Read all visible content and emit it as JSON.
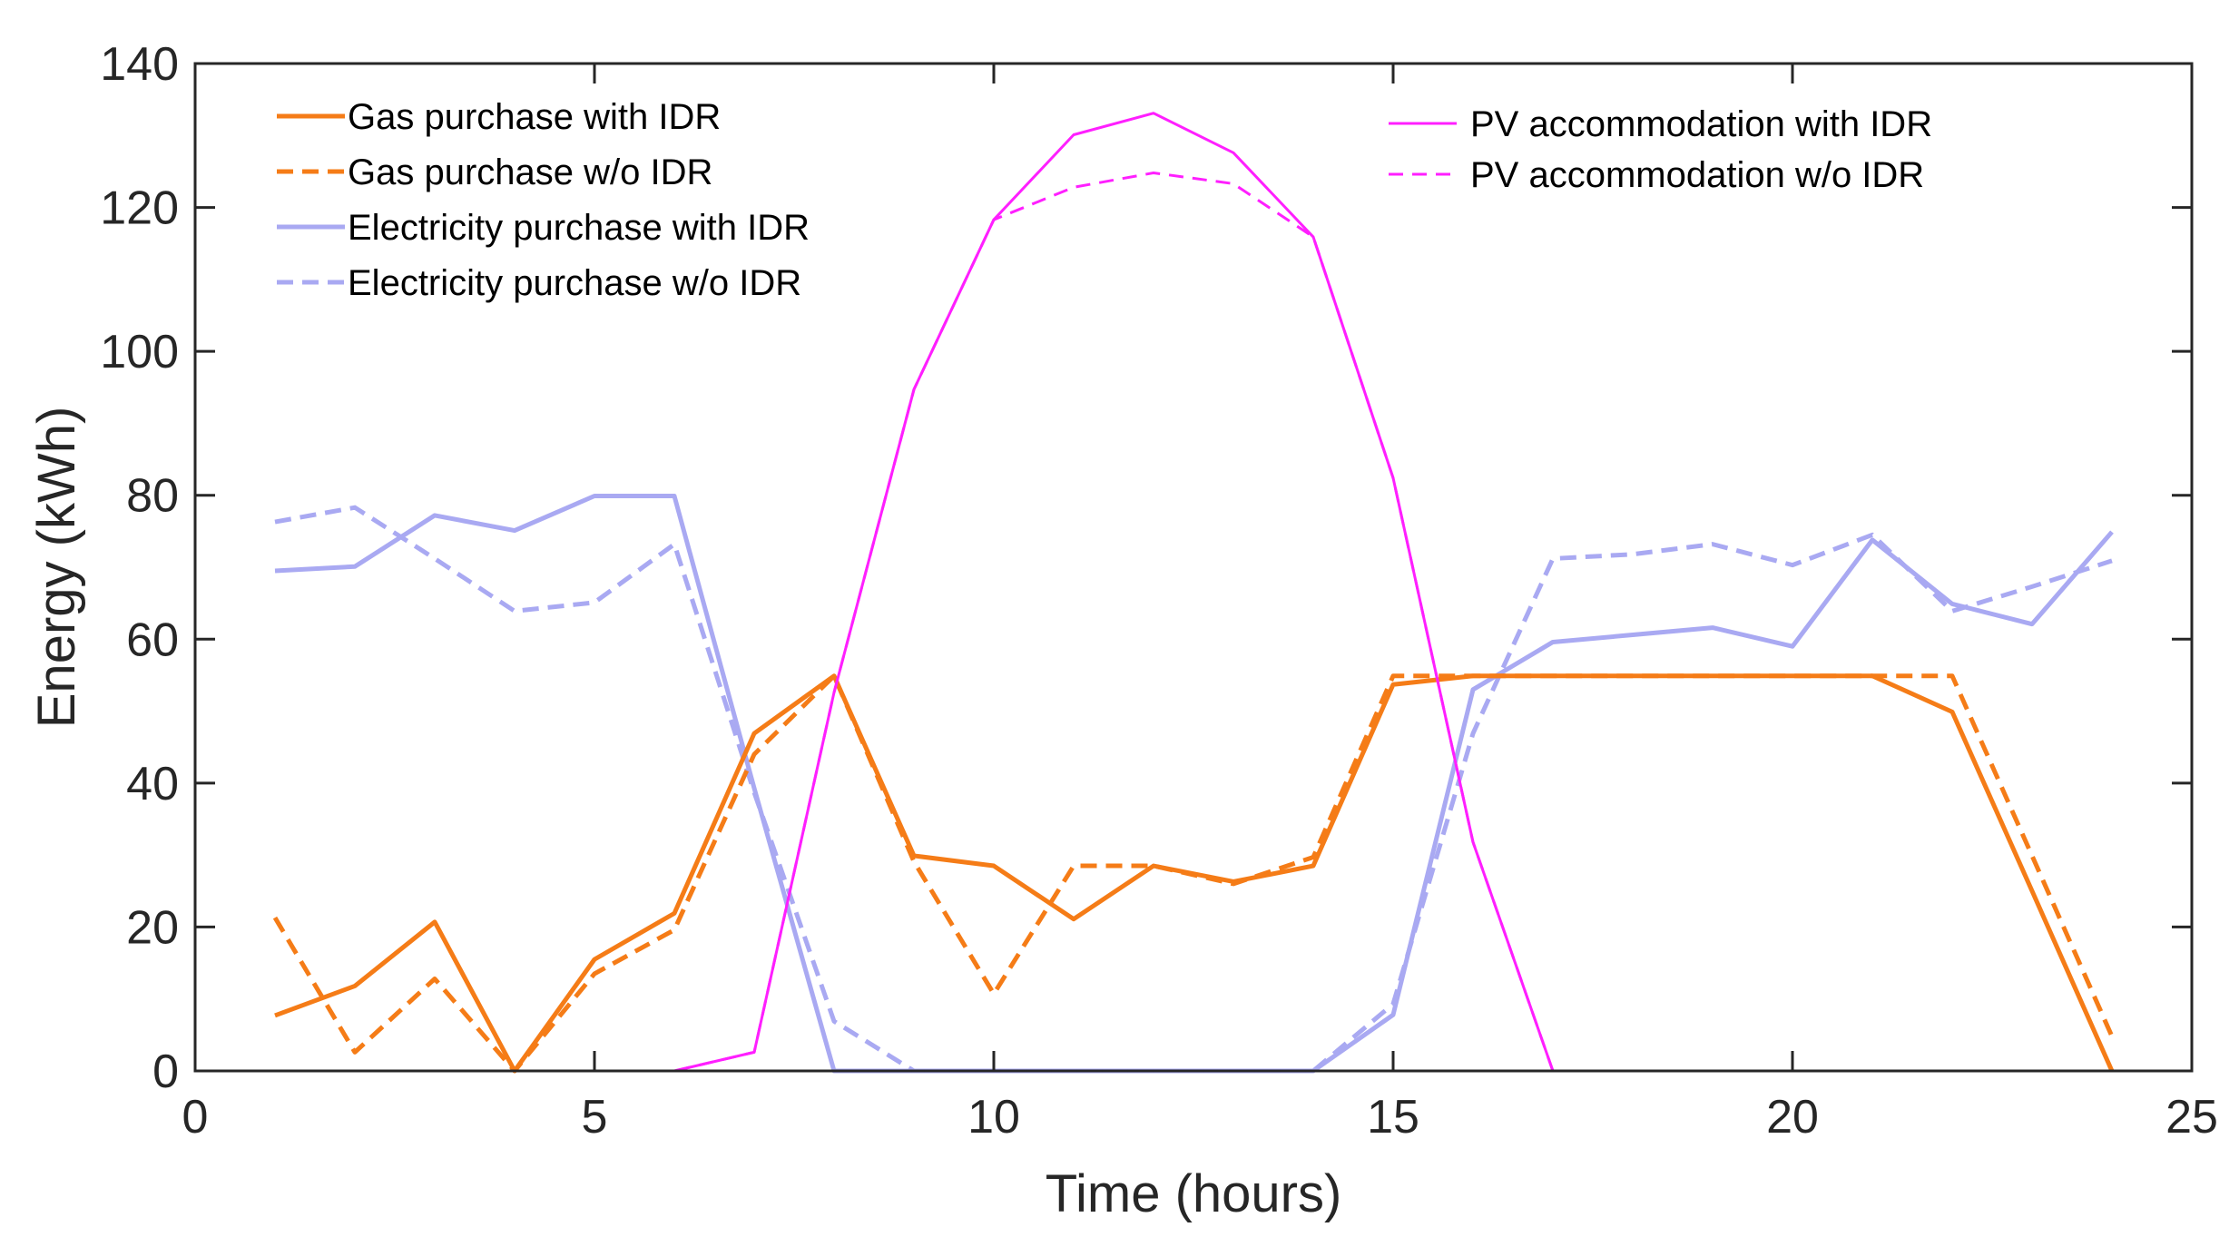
{
  "chart_data": {
    "type": "line",
    "title": "",
    "xlabel": "Time (hours)",
    "ylabel": "Energy (kWh)",
    "xlim": [
      0,
      25
    ],
    "ylim": [
      0,
      140
    ],
    "xticks": [
      0,
      5,
      10,
      15,
      20,
      25
    ],
    "yticks": [
      0,
      20,
      40,
      60,
      80,
      100,
      120,
      140
    ],
    "grid": false,
    "x": [
      1,
      2,
      3,
      4,
      5,
      6,
      7,
      8,
      9,
      10,
      11,
      12,
      13,
      14,
      15,
      16,
      17,
      18,
      19,
      20,
      21,
      22,
      23,
      24
    ],
    "series": [
      {
        "name": "Gas purchase with IDR",
        "color": "#f57c17",
        "style": "solid",
        "width": "thick",
        "values": [
          7.7,
          11.8,
          20.7,
          0,
          15.5,
          21.9,
          46.9,
          54.9,
          29.9,
          28.5,
          21.1,
          28.5,
          26.3,
          28.5,
          53.7,
          54.9,
          54.9,
          54.9,
          54.9,
          54.9,
          54.9,
          49.9,
          25.0,
          0
        ]
      },
      {
        "name": "Gas purchase w/o IDR",
        "color": "#f57c17",
        "style": "dashed",
        "width": "thick",
        "values": [
          21.3,
          2.6,
          12.8,
          0,
          13.5,
          19.6,
          44.0,
          54.9,
          29.1,
          10.7,
          28.5,
          28.5,
          26.0,
          29.7,
          54.9,
          54.9,
          54.9,
          54.9,
          54.9,
          54.9,
          54.9,
          54.9,
          29.9,
          4.8
        ]
      },
      {
        "name": "Electricity purchase with IDR",
        "color": "#a9a9f2",
        "style": "solid",
        "width": "thick",
        "values": [
          69.5,
          70.1,
          77.2,
          75.1,
          79.9,
          79.9,
          39.3,
          0,
          0,
          0,
          0,
          0,
          0,
          0,
          7.8,
          53.0,
          59.6,
          60.6,
          61.6,
          59.0,
          73.8,
          64.9,
          62.1,
          74.9
        ]
      },
      {
        "name": "Electricity purchase w/o IDR",
        "color": "#a9a9f2",
        "style": "dashed",
        "width": "thick",
        "values": [
          76.3,
          78.3,
          71.2,
          63.9,
          65.1,
          73.2,
          38.7,
          6.9,
          0,
          0,
          0,
          0,
          0,
          0,
          9.3,
          46.9,
          71.2,
          71.8,
          73.2,
          70.3,
          74.5,
          63.9,
          67.3,
          70.9
        ]
      },
      {
        "name": "PV accommodation with IDR",
        "color": "#ff1fff",
        "style": "solid",
        "width": "thin",
        "values": [
          0,
          0,
          0,
          0,
          0,
          0,
          2.6,
          52.6,
          94.7,
          118.3,
          130.1,
          133.1,
          127.6,
          115.9,
          82.4,
          31.8,
          0,
          0,
          0,
          0,
          0,
          0,
          0,
          0
        ]
      },
      {
        "name": "PV accommodation w/o IDR",
        "color": "#ff1fff",
        "style": "dashed",
        "width": "thin",
        "values": [
          0,
          0,
          0,
          0,
          0,
          0,
          2.6,
          52.6,
          94.7,
          118.3,
          122.8,
          124.8,
          123.3,
          115.9,
          82.4,
          31.8,
          0,
          0,
          0,
          0,
          0,
          0,
          0,
          0
        ]
      }
    ],
    "legends": [
      {
        "position": "top-left",
        "entries": [
          "Gas purchase with IDR",
          "Gas purchase w/o IDR",
          "Electricity purchase with IDR",
          "Electricity purchase w/o IDR"
        ]
      },
      {
        "position": "top-right",
        "entries": [
          "PV accommodation with IDR",
          "PV accommodation w/o IDR"
        ]
      }
    ]
  }
}
